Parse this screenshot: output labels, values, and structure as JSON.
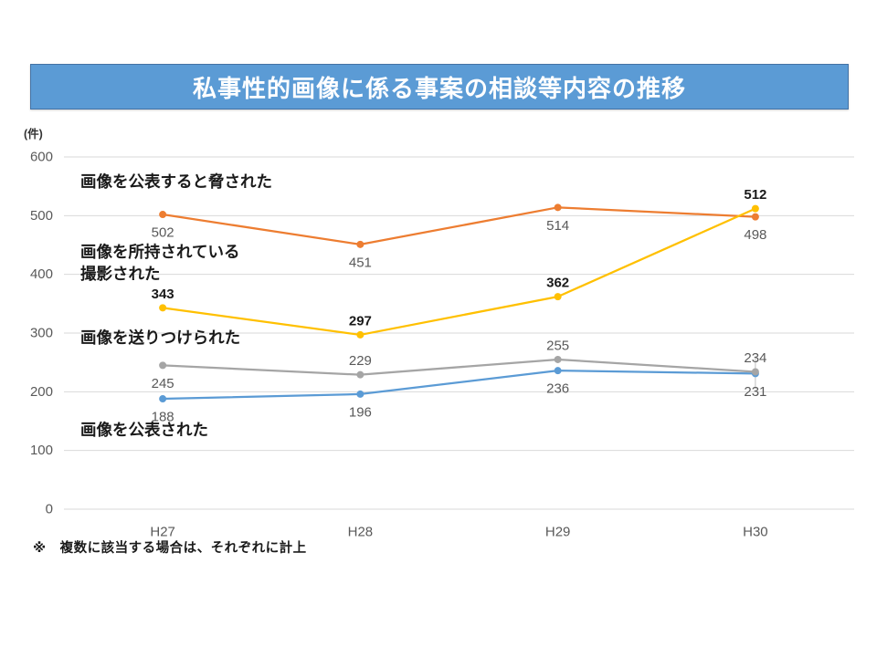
{
  "header": {
    "title": "私事性的画像に係る事案の相談等内容の推移",
    "bg_color": "#5B9BD5",
    "border_color": "#4472A4",
    "text_color": "#ffffff"
  },
  "chart_data": {
    "type": "line",
    "unit_label": "(件)",
    "categories": [
      "H27",
      "H28",
      "H29",
      "H30"
    ],
    "ylim": [
      0,
      600
    ],
    "ytick_step": 100,
    "grid": true,
    "grid_color": "#D9D9D9",
    "tick_color": "#595959",
    "series": [
      {
        "name": "画像を公表すると脅された",
        "color": "#ED7D31",
        "values": [
          502,
          451,
          514,
          498
        ],
        "label_color": "#595959",
        "label_bold": false,
        "label_side": [
          "below",
          "below",
          "below",
          "below"
        ]
      },
      {
        "name": "画像を所持されている・撮影された",
        "color": "#FFC000",
        "values": [
          343,
          297,
          362,
          512
        ],
        "label_color": "#1a1a1a",
        "label_bold": true,
        "label_side": [
          "above",
          "above",
          "above",
          "above"
        ]
      },
      {
        "name": "画像を送りつけられた",
        "color": "#A5A5A5",
        "values": [
          245,
          229,
          255,
          234
        ],
        "label_color": "#595959",
        "label_bold": false,
        "label_side": [
          "below",
          "above",
          "above",
          "above"
        ]
      },
      {
        "name": "画像を公表された",
        "color": "#5B9BD5",
        "values": [
          188,
          196,
          236,
          231
        ],
        "label_color": "#595959",
        "label_bold": false,
        "label_side": [
          "below",
          "below",
          "below",
          "below"
        ]
      }
    ],
    "annotations": [
      {
        "lines": [
          "画像を公表すると脅された"
        ],
        "x": 88,
        "y": 199
      },
      {
        "lines": [
          "画像を所持されている",
          "撮影された"
        ],
        "x": 88,
        "y": 276
      },
      {
        "lines": [
          "画像を送りつけられた"
        ],
        "x": 88,
        "y": 370
      },
      {
        "lines": [
          "画像を公表された"
        ],
        "x": 88,
        "y": 471
      }
    ],
    "footnote": "※　複数に該当する場合は、それぞれに計上",
    "annotation_color": "#1a1a1a",
    "legend_position": "none"
  }
}
